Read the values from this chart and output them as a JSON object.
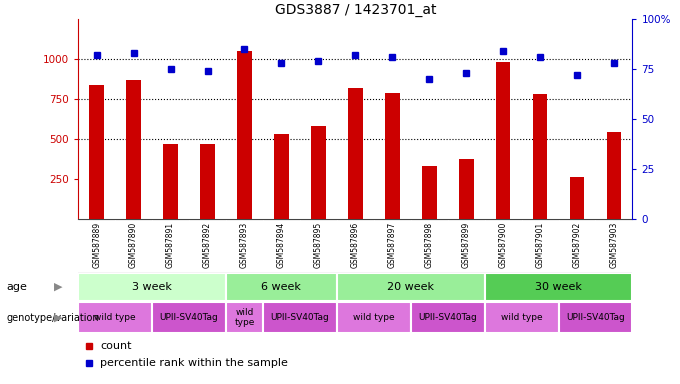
{
  "title": "GDS3887 / 1423701_at",
  "samples": [
    "GSM587889",
    "GSM587890",
    "GSM587891",
    "GSM587892",
    "GSM587893",
    "GSM587894",
    "GSM587895",
    "GSM587896",
    "GSM587897",
    "GSM587898",
    "GSM587899",
    "GSM587900",
    "GSM587901",
    "GSM587902",
    "GSM587903"
  ],
  "counts": [
    840,
    870,
    470,
    470,
    1050,
    530,
    580,
    820,
    790,
    330,
    375,
    980,
    780,
    260,
    545
  ],
  "percentiles": [
    82,
    83,
    75,
    74,
    85,
    78,
    79,
    82,
    81,
    70,
    73,
    84,
    81,
    72,
    78
  ],
  "bar_color": "#cc0000",
  "dot_color": "#0000cc",
  "ylim_left": [
    0,
    1250
  ],
  "ylim_right": [
    0,
    100
  ],
  "yticks_left": [
    250,
    500,
    750,
    1000
  ],
  "yticks_right": [
    0,
    25,
    50,
    75,
    100
  ],
  "grid_values": [
    500,
    750,
    1000
  ],
  "age_groups": [
    {
      "label": "3 week",
      "start": 0,
      "end": 4,
      "color": "#ccffcc"
    },
    {
      "label": "6 week",
      "start": 4,
      "end": 7,
      "color": "#99ee99"
    },
    {
      "label": "20 week",
      "start": 7,
      "end": 11,
      "color": "#99ee99"
    },
    {
      "label": "30 week",
      "start": 11,
      "end": 15,
      "color": "#55cc55"
    }
  ],
  "genotype_groups": [
    {
      "label": "wild type",
      "start": 0,
      "end": 2,
      "color": "#dd77dd"
    },
    {
      "label": "UPII-SV40Tag",
      "start": 2,
      "end": 4,
      "color": "#cc55cc"
    },
    {
      "label": "wild\ntype",
      "start": 4,
      "end": 5,
      "color": "#dd77dd"
    },
    {
      "label": "UPII-SV40Tag",
      "start": 5,
      "end": 7,
      "color": "#cc55cc"
    },
    {
      "label": "wild type",
      "start": 7,
      "end": 9,
      "color": "#dd77dd"
    },
    {
      "label": "UPII-SV40Tag",
      "start": 9,
      "end": 11,
      "color": "#cc55cc"
    },
    {
      "label": "wild type",
      "start": 11,
      "end": 13,
      "color": "#dd77dd"
    },
    {
      "label": "UPII-SV40Tag",
      "start": 13,
      "end": 15,
      "color": "#cc55cc"
    }
  ],
  "sample_col_color": "#bbbbbb",
  "left_axis_color": "#cc0000",
  "right_axis_color": "#0000cc",
  "background_color": "#ffffff",
  "bar_width": 0.4
}
